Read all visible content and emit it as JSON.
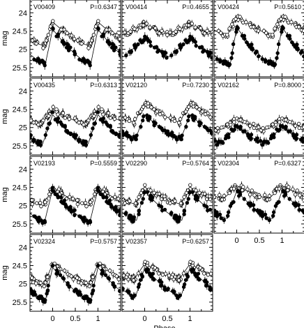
{
  "chart_data": {
    "type": "scatter",
    "xlabel": "Phase",
    "ylabel": "mag",
    "x_range": [
      -0.5,
      1.5
    ],
    "y_range": [
      25.75,
      23.65
    ],
    "x_ticks": [
      "0",
      "0.5",
      "1"
    ],
    "y_ticks": [
      "24",
      "24.5",
      "25",
      "25.5"
    ],
    "panels": [
      {
        "id": "V00409",
        "period_label": "P=0.6347",
        "open": {
          "base": 24.9,
          "amp": 0.65,
          "rise": 0.18
        },
        "filled": {
          "base": 25.4,
          "amp": 0.95,
          "rise": 0.16
        }
      },
      {
        "id": "V00414",
        "period_label": "P=0.4655",
        "open": {
          "base": 24.6,
          "amp": 0.3,
          "rise": 0.45
        },
        "filled": {
          "base": 25.2,
          "amp": 0.5,
          "rise": 0.45
        }
      },
      {
        "id": "V00424",
        "period_label": "P=0.5610",
        "open": {
          "base": 24.6,
          "amp": 0.5,
          "rise": 0.2
        },
        "filled": {
          "base": 25.45,
          "amp": 1.05,
          "rise": 0.15
        }
      },
      {
        "id": "V00435",
        "period_label": "P=0.6313",
        "open": {
          "base": 24.9,
          "amp": 0.4,
          "rise": 0.25
        },
        "filled": {
          "base": 25.45,
          "amp": 0.8,
          "rise": 0.22
        }
      },
      {
        "id": "V02120",
        "period_label": "P=0.7230",
        "open": {
          "base": 24.85,
          "amp": 0.55,
          "rise": 0.22
        },
        "filled": {
          "base": 25.3,
          "amp": 0.65,
          "rise": 0.2
        }
      },
      {
        "id": "V02162",
        "period_label": "P=0.8000",
        "open": {
          "base": 25.05,
          "amp": 0.3,
          "rise": 0.35
        },
        "filled": {
          "base": 25.45,
          "amp": 0.5,
          "rise": 0.35
        }
      },
      {
        "id": "V02193",
        "period_label": "P=0.5559",
        "open": {
          "base": 25.0,
          "amp": 0.5,
          "rise": 0.2
        },
        "filled": {
          "base": 25.45,
          "amp": 0.9,
          "rise": 0.18
        }
      },
      {
        "id": "V02290",
        "period_label": "P=0.5764",
        "open": {
          "base": 24.95,
          "amp": 0.45,
          "rise": 0.2
        },
        "filled": {
          "base": 25.4,
          "amp": 0.8,
          "rise": 0.18
        }
      },
      {
        "id": "V02304",
        "period_label": "P=0.6327",
        "open": {
          "base": 24.8,
          "amp": 0.35,
          "rise": 0.28
        },
        "filled": {
          "base": 25.35,
          "amp": 0.75,
          "rise": 0.22
        }
      },
      {
        "id": "V02324",
        "period_label": "P=0.5757",
        "open": {
          "base": 25.0,
          "amp": 0.55,
          "rise": 0.18
        },
        "filled": {
          "base": 25.45,
          "amp": 0.9,
          "rise": 0.16
        }
      },
      {
        "id": "V02357",
        "period_label": "P=0.6257",
        "open": {
          "base": 24.85,
          "amp": 0.4,
          "rise": 0.22
        },
        "filled": {
          "base": 25.35,
          "amp": 0.8,
          "rise": 0.2
        }
      }
    ]
  }
}
